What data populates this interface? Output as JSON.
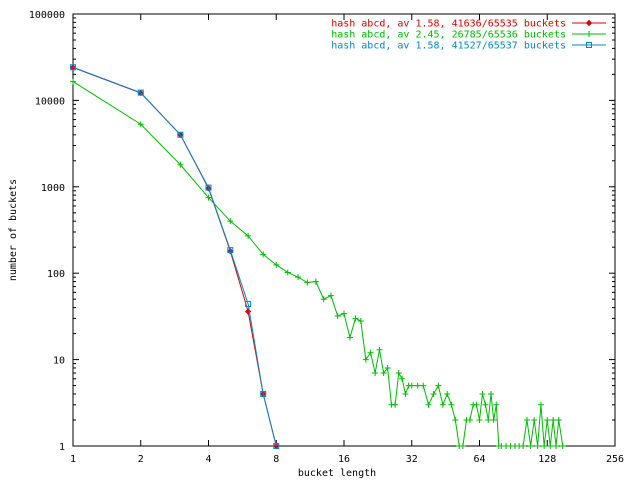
{
  "chart_data": {
    "type": "line",
    "xlabel": "bucket length",
    "ylabel": "number of buckets",
    "x_scale": "log2",
    "y_scale": "log10",
    "xlim": [
      1,
      256
    ],
    "ylim": [
      1,
      100000
    ],
    "x_ticks": [
      1,
      2,
      4,
      8,
      16,
      32,
      64,
      128,
      256
    ],
    "x_tick_labels": [
      "1",
      "2",
      "4",
      "8",
      "16",
      "32",
      "64",
      "128",
      "256"
    ],
    "y_ticks": [
      1,
      10,
      100,
      1000,
      10000,
      100000
    ],
    "y_tick_labels": [
      "1",
      "10",
      "100",
      "1000",
      "10000",
      "100000"
    ],
    "grid": false,
    "legend_position": "top-right",
    "series": [
      {
        "name": "hash abcd, av 1.58, 41636/65535 buckets",
        "color": "#dd0000",
        "marker": "diamond",
        "points": [
          [
            1,
            24000
          ],
          [
            2,
            12200
          ],
          [
            3,
            4000
          ],
          [
            4,
            960
          ],
          [
            5,
            180
          ],
          [
            6,
            36
          ],
          [
            7,
            4
          ],
          [
            8,
            1
          ]
        ]
      },
      {
        "name": "hash abcd, av 2.45, 26785/65536 buckets",
        "color": "#00bb00",
        "marker": "plus",
        "points": [
          [
            1,
            16500
          ],
          [
            2,
            5300
          ],
          [
            3,
            1800
          ],
          [
            4,
            750
          ],
          [
            5,
            400
          ],
          [
            6,
            270
          ],
          [
            7,
            165
          ],
          [
            8,
            125
          ],
          [
            9,
            102
          ],
          [
            10,
            90
          ],
          [
            11,
            78
          ],
          [
            12,
            80
          ],
          [
            13,
            50
          ],
          [
            14,
            55
          ],
          [
            15,
            32
          ],
          [
            16,
            34
          ],
          [
            17,
            18
          ],
          [
            18,
            30
          ],
          [
            19,
            28
          ],
          [
            20,
            10
          ],
          [
            21,
            12
          ],
          [
            22,
            7
          ],
          [
            23,
            13
          ],
          [
            24,
            7
          ],
          [
            25,
            8
          ],
          [
            26,
            3
          ],
          [
            27,
            3
          ],
          [
            28,
            7
          ],
          [
            29,
            6
          ],
          [
            30,
            4
          ],
          [
            31,
            5
          ],
          [
            32,
            5
          ],
          [
            34,
            5
          ],
          [
            36,
            5
          ],
          [
            38,
            3
          ],
          [
            40,
            4
          ],
          [
            42,
            5
          ],
          [
            44,
            3
          ],
          [
            46,
            4
          ],
          [
            48,
            3
          ],
          [
            50,
            2
          ],
          [
            52,
            1
          ],
          [
            54,
            1
          ],
          [
            56,
            2
          ],
          [
            58,
            2
          ],
          [
            60,
            3
          ],
          [
            62,
            3
          ],
          [
            64,
            2
          ],
          [
            66,
            4
          ],
          [
            68,
            3
          ],
          [
            70,
            2
          ],
          [
            72,
            4
          ],
          [
            74,
            2
          ],
          [
            76,
            3
          ],
          [
            78,
            1
          ],
          [
            80,
            1
          ],
          [
            84,
            1
          ],
          [
            88,
            1
          ],
          [
            92,
            1
          ],
          [
            96,
            1
          ],
          [
            100,
            1
          ],
          [
            104,
            2
          ],
          [
            108,
            1
          ],
          [
            112,
            2
          ],
          [
            116,
            1
          ],
          [
            120,
            3
          ],
          [
            124,
            1
          ],
          [
            128,
            2
          ],
          [
            132,
            1
          ],
          [
            136,
            2
          ],
          [
            140,
            1
          ],
          [
            144,
            2
          ],
          [
            150,
            1
          ]
        ]
      },
      {
        "name": "hash abcd, av 1.58, 41527/65537 buckets",
        "color": "#0088cc",
        "marker": "square",
        "points": [
          [
            1,
            24200
          ],
          [
            2,
            12300
          ],
          [
            3,
            4000
          ],
          [
            4,
            980
          ],
          [
            5,
            185
          ],
          [
            6,
            44
          ],
          [
            7,
            4
          ],
          [
            8,
            1
          ]
        ]
      }
    ]
  }
}
